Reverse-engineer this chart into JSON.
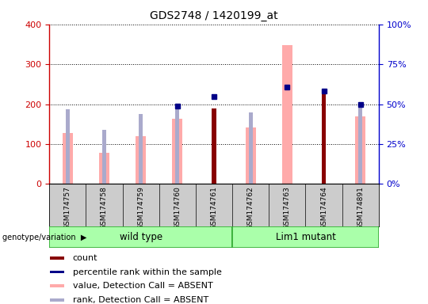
{
  "title": "GDS2748 / 1420199_at",
  "samples": [
    "GSM174757",
    "GSM174758",
    "GSM174759",
    "GSM174760",
    "GSM174761",
    "GSM174762",
    "GSM174763",
    "GSM174764",
    "GSM174891"
  ],
  "value_absent": [
    128,
    78,
    120,
    163,
    0,
    142,
    348,
    0,
    170
  ],
  "rank_absent": [
    188,
    135,
    175,
    196,
    0,
    180,
    0,
    0,
    198
  ],
  "count": [
    0,
    0,
    0,
    0,
    190,
    0,
    0,
    232,
    0
  ],
  "percentile_rank": [
    0,
    0,
    0,
    196,
    218,
    0,
    243,
    232,
    200
  ],
  "ylim_left": [
    0,
    400
  ],
  "ylim_right": [
    0,
    100
  ],
  "left_ticks": [
    0,
    100,
    200,
    300,
    400
  ],
  "right_ticks": [
    0,
    25,
    50,
    75,
    100
  ],
  "left_color": "#cc0000",
  "right_color": "#0000cc",
  "bar_color_value": "#ffaaaa",
  "bar_color_rank": "#aaaacc",
  "bar_color_count": "#880000",
  "bar_color_percentile": "#000088",
  "wt_group": [
    0,
    4
  ],
  "lm_group": [
    5,
    8
  ],
  "group_color": "#aaffaa",
  "group_edge_color": "#33aa33",
  "sample_bg": "#cccccc",
  "group_label": "genotype/variation",
  "legend": [
    {
      "label": "count",
      "color": "#880000"
    },
    {
      "label": "percentile rank within the sample",
      "color": "#000088"
    },
    {
      "label": "value, Detection Call = ABSENT",
      "color": "#ffaaaa"
    },
    {
      "label": "rank, Detection Call = ABSENT",
      "color": "#aaaacc"
    }
  ]
}
